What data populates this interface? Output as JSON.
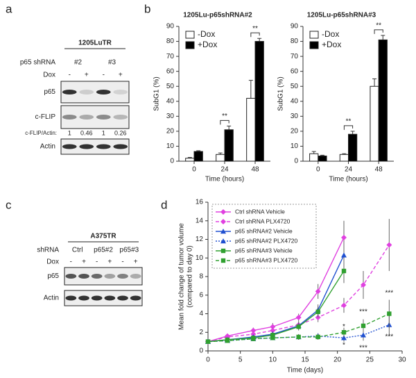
{
  "panel_labels": [
    "a",
    "b",
    "c",
    "d"
  ],
  "blot_a": {
    "cell_line": "1205LuTR",
    "row_label": "p65 shRNA",
    "clones": [
      "#2",
      "#3"
    ],
    "dox_label": "Dox",
    "dox": [
      "-",
      "+",
      "-",
      "+"
    ],
    "bands": [
      "p65",
      "c-FLIP",
      "Actin"
    ],
    "ratio_label": "c-FLIP/Actin:",
    "ratios": [
      1,
      0.46,
      1,
      0.26
    ]
  },
  "blot_c": {
    "cell_line": "A375TR",
    "row_label": "shRNA",
    "groups": [
      "Ctrl",
      "p65#2",
      "p65#3"
    ],
    "dox_label": "Dox",
    "dox": [
      "-",
      "+",
      "-",
      "+",
      "-",
      "+"
    ],
    "bands": [
      "p65",
      "Actin"
    ]
  },
  "chart_data": [
    {
      "type": "bar",
      "title": "1205Lu-p65shRNA#2",
      "xlabel": "Time (hours)",
      "ylabel": "SubG1 (%)",
      "categories": [
        "0",
        "24",
        "48"
      ],
      "ylim": [
        0,
        90
      ],
      "yticks": [
        0,
        10,
        20,
        30,
        40,
        50,
        60,
        70,
        80,
        90
      ],
      "legend": "upper left",
      "series": [
        {
          "name": "-Dox",
          "color": "#ffffff",
          "values": [
            2,
            4.5,
            42
          ],
          "errors": [
            0.5,
            1,
            12
          ]
        },
        {
          "name": "+Dox",
          "color": "#000000",
          "values": [
            6.5,
            21,
            80
          ],
          "errors": [
            0.5,
            2.5,
            2
          ]
        }
      ],
      "annotations": [
        {
          "text": "**",
          "category": 1
        },
        {
          "text": "**",
          "category": 2
        }
      ]
    },
    {
      "type": "bar",
      "title": "1205Lu-p65shRNA#3",
      "xlabel": "Time (hours)",
      "ylabel": "SubG1 (%)",
      "categories": [
        "0",
        "24",
        "48"
      ],
      "ylim": [
        0,
        90
      ],
      "yticks": [
        0,
        10,
        20,
        30,
        40,
        50,
        60,
        70,
        80,
        90
      ],
      "legend": "upper left",
      "series": [
        {
          "name": "-Dox",
          "color": "#ffffff",
          "values": [
            5,
            4.5,
            50
          ],
          "errors": [
            1.5,
            0.5,
            5
          ]
        },
        {
          "name": "+Dox",
          "color": "#000000",
          "values": [
            3.5,
            18,
            81
          ],
          "errors": [
            0.5,
            2,
            3
          ]
        }
      ],
      "annotations": [
        {
          "text": "**",
          "category": 1
        },
        {
          "text": "**",
          "category": 2
        }
      ]
    },
    {
      "type": "line",
      "xlabel": "Time (days)",
      "ylabel": [
        "Mean fold change of tumor volume",
        "(compared to day 0)"
      ],
      "xlim": [
        0,
        30
      ],
      "xticks": [
        0,
        5,
        10,
        15,
        20,
        25,
        30
      ],
      "ylim": [
        0,
        16
      ],
      "yticks": [
        0,
        2,
        4,
        6,
        8,
        10,
        12,
        14,
        16
      ],
      "legend": "upper left",
      "series": [
        {
          "name": "Ctrl shRNA Vehicle",
          "color": "#e040e0",
          "linestyle": "solid",
          "marker": "diamond",
          "x": [
            0,
            3,
            7,
            10,
            14,
            17,
            21
          ],
          "values": [
            1,
            1.6,
            2.2,
            2.6,
            3.6,
            6.4,
            12.2
          ],
          "errors": [
            0,
            0.2,
            0.3,
            0.4,
            0.4,
            0.8,
            1.8
          ]
        },
        {
          "name": "Ctrl shRNA PLX4720",
          "color": "#e040e0",
          "linestyle": "dashed",
          "marker": "diamond",
          "x": [
            0,
            3,
            7,
            10,
            14,
            17,
            21,
            24,
            28
          ],
          "values": [
            1,
            1.5,
            1.8,
            2.2,
            2.8,
            3.6,
            4.9,
            7.1,
            11.4
          ],
          "errors": [
            0,
            0.2,
            0.3,
            0.3,
            0.4,
            0.5,
            0.8,
            1.5,
            2.8
          ]
        },
        {
          "name": "p65 shRNA#2 Vehicle",
          "color": "#2050d0",
          "linestyle": "solid",
          "marker": "triangle",
          "x": [
            0,
            3,
            7,
            10,
            14,
            17,
            21
          ],
          "values": [
            1,
            1.2,
            1.5,
            1.8,
            2.7,
            4.4,
            10.3
          ],
          "errors": [
            0,
            0.2,
            0.2,
            0.3,
            0.4,
            0.6,
            1.5
          ]
        },
        {
          "name": "p65 shRNA#2 PLX4720",
          "color": "#2050d0",
          "linestyle": "dotted",
          "marker": "triangle",
          "x": [
            0,
            3,
            7,
            10,
            14,
            17,
            21,
            24,
            28
          ],
          "values": [
            1,
            1.1,
            1.3,
            1.4,
            1.5,
            1.6,
            1.4,
            1.7,
            2.8
          ],
          "errors": [
            0,
            0.1,
            0.2,
            0.2,
            0.3,
            0.3,
            0.4,
            0.6,
            1.2
          ]
        },
        {
          "name": "p65 shRNA#3 Vehicle",
          "color": "#30a030",
          "linestyle": "solid",
          "marker": "square",
          "x": [
            0,
            3,
            7,
            10,
            14,
            17,
            21
          ],
          "values": [
            1,
            1.2,
            1.4,
            1.7,
            2.6,
            4.2,
            8.6
          ],
          "errors": [
            0,
            0.2,
            0.2,
            0.3,
            0.4,
            0.6,
            1.3
          ]
        },
        {
          "name": "p65 shRNA#3 PLX4720",
          "color": "#30a030",
          "linestyle": "dashed",
          "marker": "square",
          "x": [
            0,
            3,
            7,
            10,
            14,
            17,
            21,
            24,
            28
          ],
          "values": [
            1,
            1.1,
            1.3,
            1.4,
            1.5,
            1.5,
            2,
            2.7,
            4
          ],
          "errors": [
            0,
            0.1,
            0.2,
            0.2,
            0.3,
            0.3,
            0.5,
            0.7,
            1.5
          ]
        }
      ],
      "annotations": [
        {
          "text": "*",
          "x": 21,
          "y": 2.6
        },
        {
          "text": "*",
          "x": 21,
          "y": 0.6
        },
        {
          "text": "***",
          "x": 24,
          "y": 4.2
        },
        {
          "text": "***",
          "x": 24,
          "y": 0.3
        },
        {
          "text": "***",
          "x": 28,
          "y": 6.2
        },
        {
          "text": "***",
          "x": 28,
          "y": 1.5
        }
      ]
    }
  ]
}
